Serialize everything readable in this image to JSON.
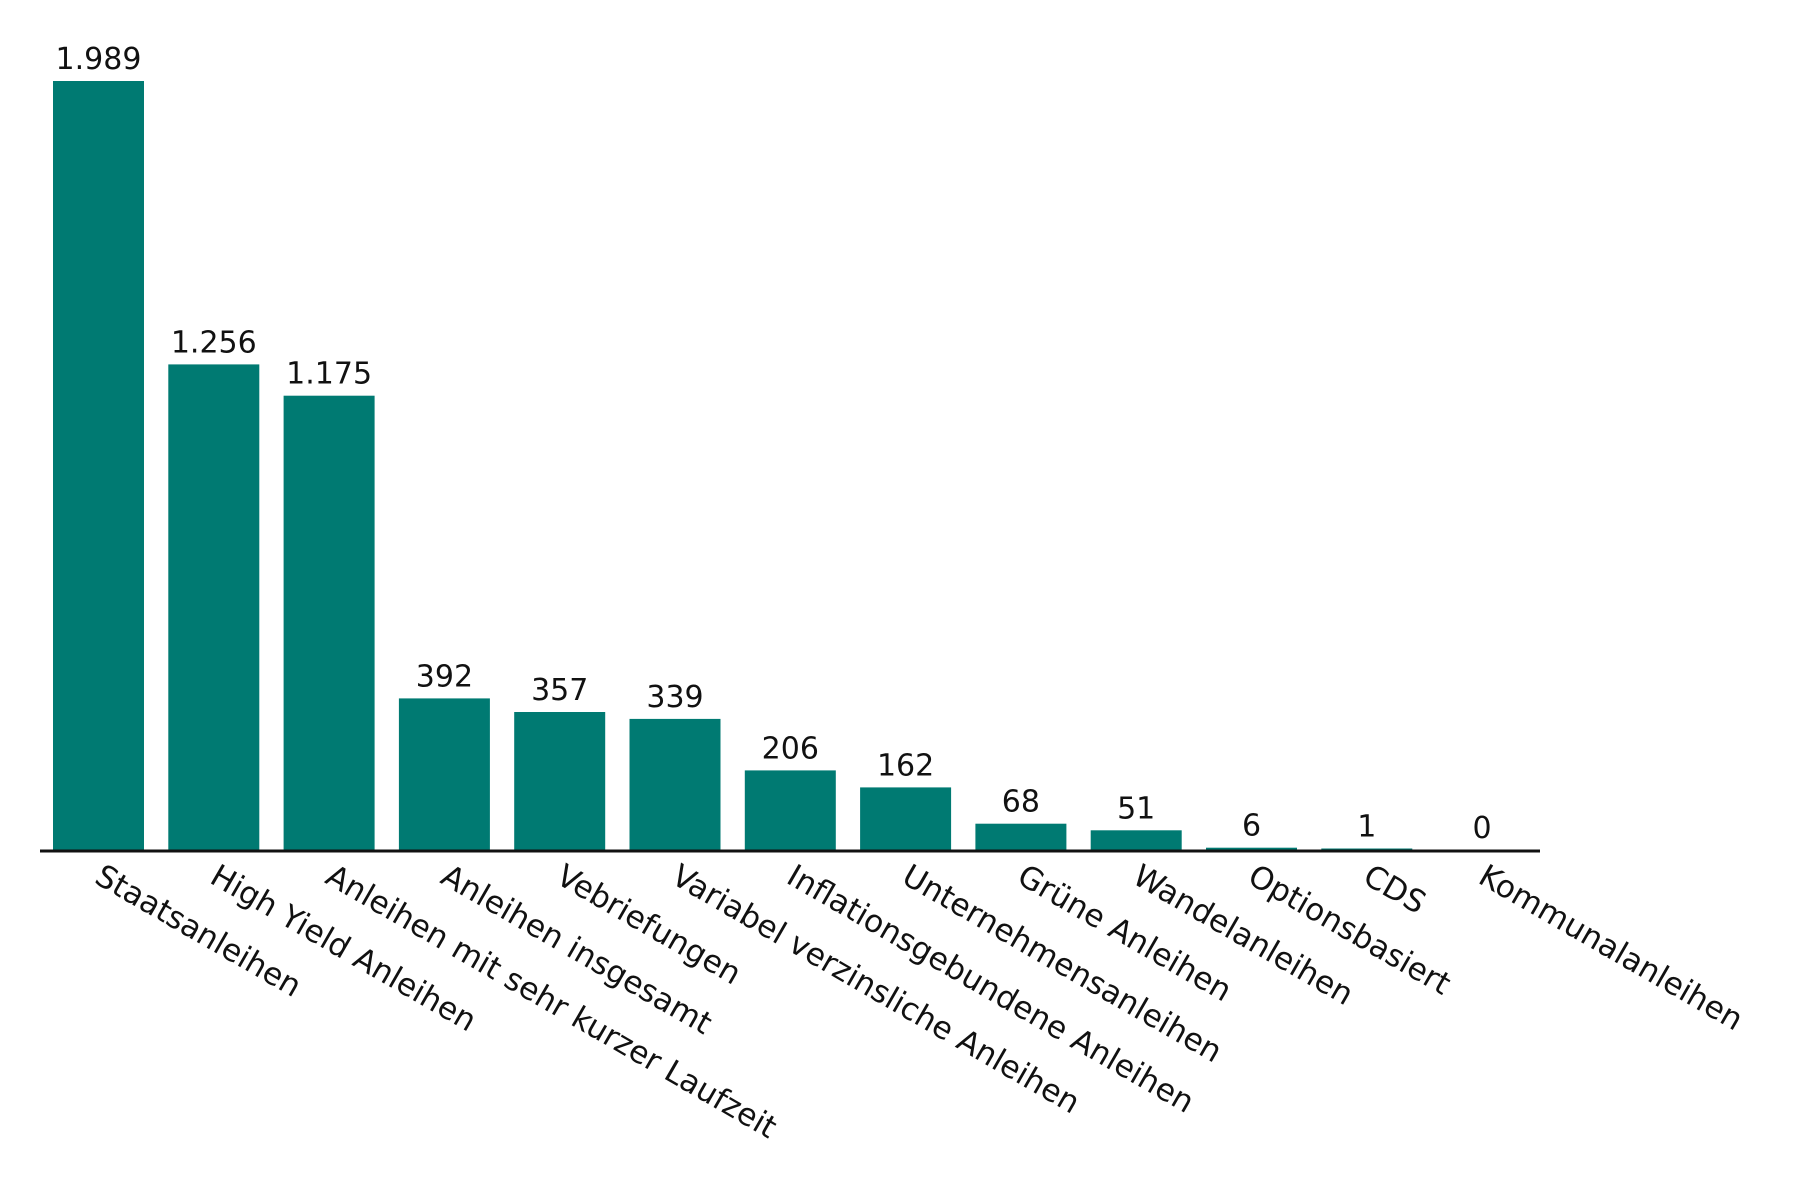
{
  "colors": {
    "bar": "#007a72",
    "axis": "#111111",
    "text": "#111111",
    "background": "#ffffff"
  },
  "chart_data": {
    "type": "bar",
    "title": "",
    "xlabel": "",
    "ylabel": "",
    "ylim": [
      0,
      1989
    ],
    "grid": false,
    "legend": "none",
    "categories": [
      "Staatsanleihen",
      "High Yield Anleihen",
      "Anleihen mit sehr kurzer Laufzeit",
      "Anleihen insgesamt",
      "Vebriefungen",
      "Variabel verzinsliche Anleihen",
      "Inflationsgebundene Anleihen",
      "Unternehmensanleihen",
      "Grüne Anleihen",
      "Wandelanleihen",
      "Optionsbasiert",
      "CDS",
      "Kommunalanleihen"
    ],
    "values": [
      1989,
      1256,
      1175,
      392,
      357,
      339,
      206,
      162,
      68,
      51,
      6,
      1,
      0
    ],
    "value_labels": [
      "1.989",
      "1.256",
      "1.175",
      "392",
      "357",
      "339",
      "206",
      "162",
      "68",
      "51",
      "6",
      "1",
      "0"
    ]
  }
}
